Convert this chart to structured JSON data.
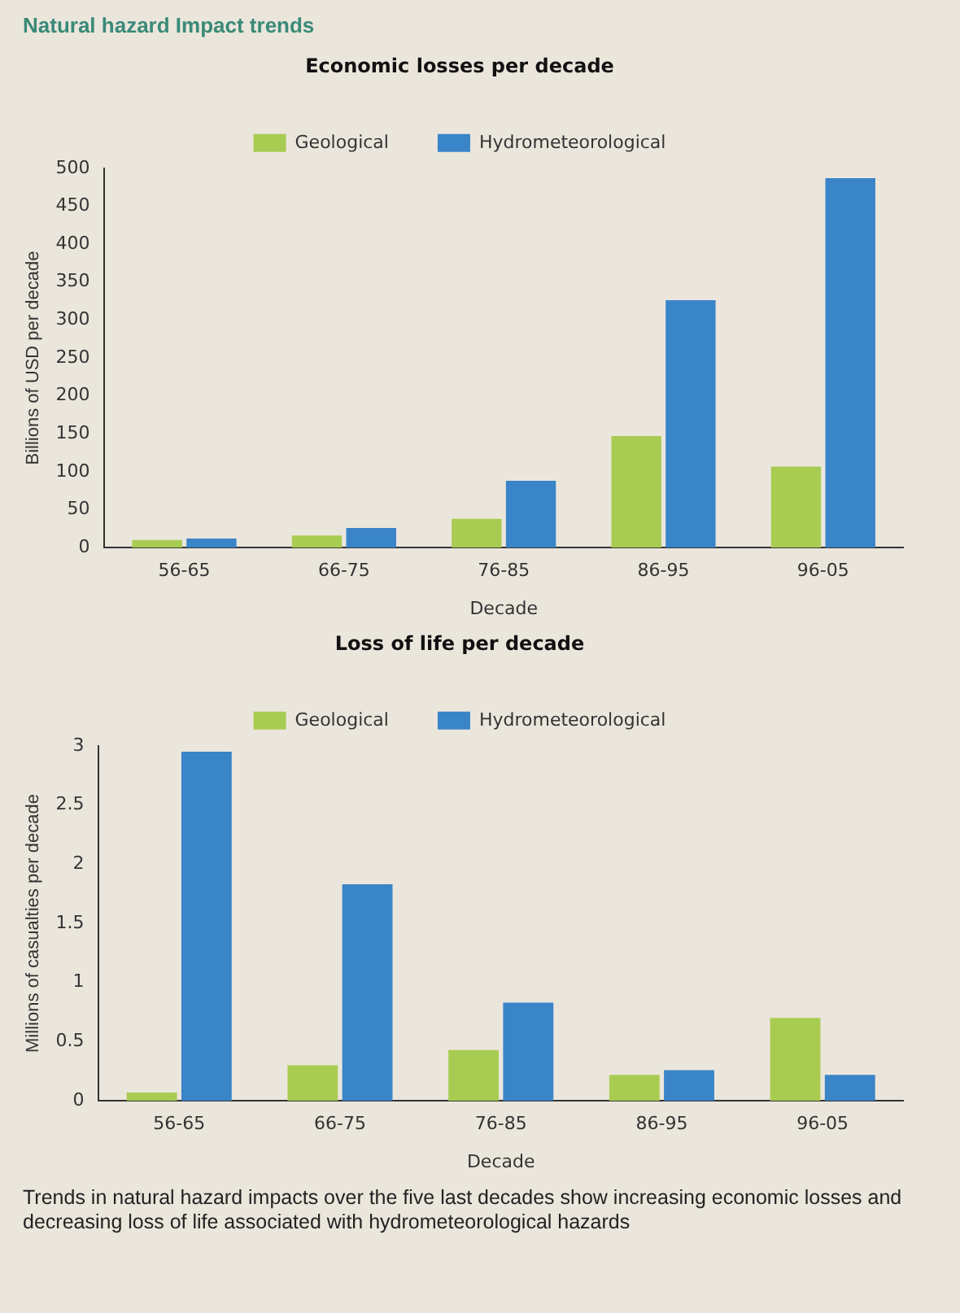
{
  "chart_data": [
    {
      "type": "bar",
      "title": "Economic losses per decade",
      "xlabel": "Decade",
      "ylabel": "Billions of USD per decade",
      "annotations": [
        "Natural hazard Impact trends"
      ],
      "categories": [
        "56-65",
        "66-75",
        "76-85",
        "86-95",
        "96-05"
      ],
      "series": [
        {
          "name": "Geological",
          "color": "#a8cc52",
          "values": [
            10,
            16,
            38,
            147,
            107
          ]
        },
        {
          "name": "Hydrometeorological",
          "color": "#3a84c8",
          "values": [
            12,
            26,
            88,
            326,
            487
          ]
        }
      ],
      "ylim": [
        0,
        500
      ],
      "yticks": [
        0,
        50,
        100,
        150,
        200,
        250,
        300,
        350,
        400,
        450,
        500
      ],
      "grid": false,
      "legend": "top"
    },
    {
      "type": "bar",
      "title": "Loss of life per decade",
      "xlabel": "Decade",
      "ylabel": "Millions of casualties per decade",
      "annotations": [
        "Trends in natural hazard impacts over the five last decades show increasing economic losses and decreasing loss of life associated with hydrometeorological hazards"
      ],
      "categories": [
        "56-65",
        "66-75",
        "76-85",
        "86-95",
        "96-05"
      ],
      "series": [
        {
          "name": "Geological",
          "color": "#a8cc52",
          "values": [
            0.07,
            0.3,
            0.43,
            0.22,
            0.7
          ]
        },
        {
          "name": "Hydrometeorological",
          "color": "#3a84c8",
          "values": [
            2.95,
            1.83,
            0.83,
            0.26,
            0.22
          ]
        }
      ],
      "ylim": [
        0,
        3
      ],
      "yticks": [
        0,
        0.5,
        1,
        1.5,
        2,
        2.5,
        3
      ],
      "grid": false,
      "legend": "top"
    }
  ]
}
